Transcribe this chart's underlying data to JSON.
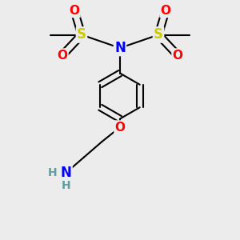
{
  "background_color": "#ececec",
  "atom_colors": {
    "C": "#000000",
    "H": "#5f9ea0",
    "N": "#0000ff",
    "O": "#ff0000",
    "S": "#cccc00"
  },
  "bond_color": "#000000",
  "bond_width": 1.5,
  "figsize": [
    3.0,
    3.0
  ],
  "dpi": 100
}
